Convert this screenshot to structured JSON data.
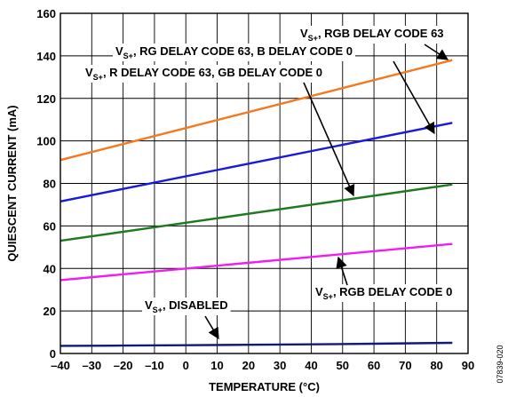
{
  "chart_data": {
    "type": "line",
    "xlabel": "TEMPERATURE (°C)",
    "ylabel": "QUIESCENT CURRENT (mA)",
    "xlim": [
      -40,
      90
    ],
    "ylim": [
      0,
      160
    ],
    "xticks": [
      -40,
      -30,
      -20,
      -10,
      0,
      10,
      20,
      30,
      40,
      50,
      60,
      70,
      80,
      90
    ],
    "yticks": [
      0,
      20,
      40,
      60,
      80,
      100,
      120,
      140,
      160
    ],
    "grid": true,
    "series": [
      {
        "name": "VS+, RGB DELAY CODE 63",
        "color": "#f47920",
        "x": [
          -40,
          85
        ],
        "y": [
          91,
          138
        ]
      },
      {
        "name": "VS+, RG DELAY CODE 63, B DELAY CODE 0",
        "color": "#1a1adc",
        "x": [
          -40,
          85
        ],
        "y": [
          71.5,
          108.5
        ]
      },
      {
        "name": "VS+, R DELAY CODE 63, GB DELAY CODE 0",
        "color": "#1f7a1f",
        "x": [
          -40,
          85
        ],
        "y": [
          53,
          79.5
        ]
      },
      {
        "name": "VS+, RGB DELAY CODE 0",
        "color": "#f21cf0",
        "x": [
          -40,
          85
        ],
        "y": [
          34.5,
          51.5
        ]
      },
      {
        "name": "VS+, DISABLED",
        "color": "#101a7a",
        "x": [
          -40,
          -20,
          0,
          20,
          40,
          60,
          85
        ],
        "y": [
          3.6,
          3.7,
          3.9,
          4.1,
          4.3,
          4.6,
          5.0
        ]
      }
    ],
    "annotations": [
      {
        "base": "V",
        "sub": "S+",
        "rest": ", RGB DELAY CODE 63"
      },
      {
        "base": "V",
        "sub": "S+",
        "rest": ", RG DELAY CODE 63, B DELAY CODE 0"
      },
      {
        "base": "V",
        "sub": "S+",
        "rest": ", R DELAY CODE 63, GB DELAY CODE 0"
      },
      {
        "base": "V",
        "sub": "S+",
        "rest": ", RGB DELAY CODE 0"
      },
      {
        "base": "V",
        "sub": "S+",
        "rest": ", DISABLED"
      }
    ],
    "figure_id": "07839-020"
  }
}
